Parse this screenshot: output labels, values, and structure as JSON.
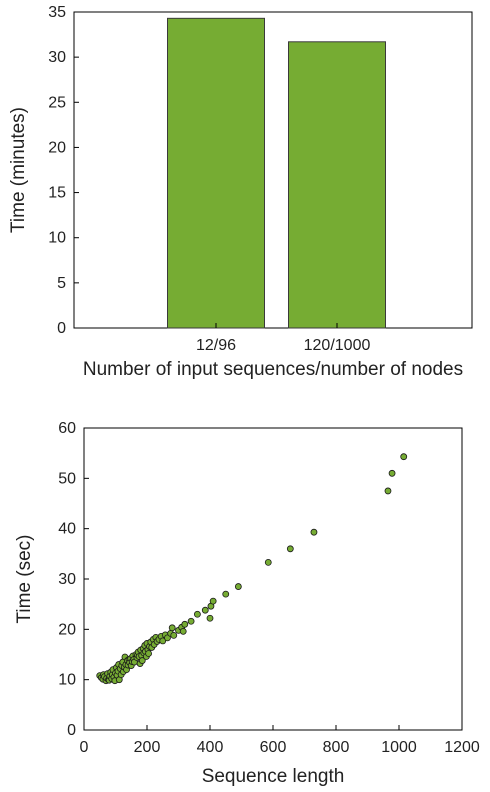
{
  "chart_data": [
    {
      "type": "bar",
      "categories": [
        "12/96",
        "120/1000"
      ],
      "values": [
        34.3,
        31.7
      ],
      "xlabel": "Number of input sequences/number of nodes",
      "ylabel": "Time (minutes)",
      "ylim": [
        0,
        35
      ],
      "yticks": [
        "0",
        "5",
        "10",
        "15",
        "20",
        "25",
        "30",
        "35"
      ],
      "bar_color": "#76ac33",
      "grid": false
    },
    {
      "type": "scatter",
      "xlabel": "Sequence length",
      "ylabel": "Time (sec)",
      "xlim": [
        0,
        1200
      ],
      "ylim": [
        0,
        60
      ],
      "xticks": [
        "0",
        "200",
        "400",
        "600",
        "800",
        "1000",
        "1200"
      ],
      "yticks": [
        "0",
        "10",
        "20",
        "30",
        "40",
        "50",
        "60"
      ],
      "marker_color": "#76ac33",
      "grid": false,
      "points": [
        [
          50,
          10.8
        ],
        [
          55,
          10.4
        ],
        [
          60,
          10.1
        ],
        [
          62,
          11.0
        ],
        [
          65,
          10.6
        ],
        [
          70,
          9.8
        ],
        [
          72,
          10.3
        ],
        [
          75,
          11.2
        ],
        [
          78,
          10.0
        ],
        [
          80,
          9.9
        ],
        [
          82,
          10.7
        ],
        [
          85,
          11.5
        ],
        [
          88,
          10.2
        ],
        [
          90,
          11.0
        ],
        [
          92,
          12.0
        ],
        [
          95,
          10.5
        ],
        [
          98,
          9.8
        ],
        [
          100,
          11.3
        ],
        [
          103,
          12.4
        ],
        [
          105,
          10.9
        ],
        [
          108,
          11.7
        ],
        [
          110,
          13.0
        ],
        [
          112,
          10.0
        ],
        [
          115,
          12.2
        ],
        [
          118,
          11.0
        ],
        [
          120,
          12.8
        ],
        [
          123,
          13.5
        ],
        [
          125,
          11.6
        ],
        [
          128,
          12.5
        ],
        [
          130,
          14.5
        ],
        [
          133,
          13.0
        ],
        [
          135,
          12.0
        ],
        [
          138,
          13.8
        ],
        [
          140,
          12.9
        ],
        [
          143,
          14.0
        ],
        [
          145,
          13.4
        ],
        [
          148,
          14.2
        ],
        [
          150,
          12.8
        ],
        [
          153,
          13.6
        ],
        [
          155,
          14.7
        ],
        [
          158,
          14.0
        ],
        [
          160,
          13.5
        ],
        [
          165,
          15.0
        ],
        [
          168,
          14.4
        ],
        [
          170,
          14.9
        ],
        [
          172,
          15.5
        ],
        [
          175,
          14.6
        ],
        [
          178,
          13.2
        ],
        [
          180,
          15.9
        ],
        [
          183,
          14.8
        ],
        [
          185,
          13.8
        ],
        [
          188,
          16.2
        ],
        [
          190,
          15.3
        ],
        [
          193,
          16.8
        ],
        [
          195,
          15.6
        ],
        [
          198,
          14.6
        ],
        [
          200,
          17.2
        ],
        [
          203,
          16.0
        ],
        [
          205,
          15.2
        ],
        [
          208,
          16.6
        ],
        [
          212,
          17.5
        ],
        [
          215,
          16.4
        ],
        [
          220,
          18.0
        ],
        [
          223,
          17.0
        ],
        [
          228,
          18.4
        ],
        [
          232,
          17.6
        ],
        [
          238,
          18.0
        ],
        [
          245,
          18.6
        ],
        [
          250,
          17.7
        ],
        [
          258,
          18.9
        ],
        [
          265,
          18.3
        ],
        [
          275,
          19.2
        ],
        [
          280,
          20.3
        ],
        [
          285,
          18.8
        ],
        [
          300,
          19.8
        ],
        [
          310,
          20.4
        ],
        [
          315,
          19.6
        ],
        [
          320,
          21.0
        ],
        [
          340,
          21.6
        ],
        [
          360,
          23.0
        ],
        [
          385,
          23.8
        ],
        [
          400,
          22.2
        ],
        [
          403,
          24.6
        ],
        [
          410,
          25.6
        ],
        [
          450,
          27.0
        ],
        [
          490,
          28.5
        ],
        [
          585,
          33.3
        ],
        [
          655,
          36.0
        ],
        [
          730,
          39.3
        ],
        [
          965,
          47.5
        ],
        [
          978,
          51.0
        ],
        [
          1015,
          54.3
        ]
      ]
    }
  ]
}
